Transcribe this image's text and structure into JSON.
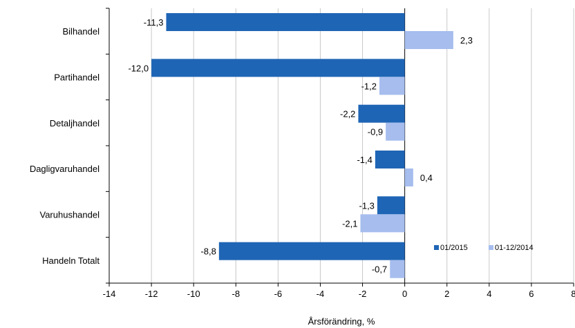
{
  "chart_data": {
    "type": "bar",
    "orientation": "horizontal",
    "categories": [
      "Bilhandel",
      "Partihandel",
      "Detaljhandel",
      "Dagligvaruhandel",
      "Varuhushandel",
      "Handeln Totalt"
    ],
    "series": [
      {
        "name": "01/2015",
        "color": "#1f65b5",
        "values": [
          -11.3,
          -12.0,
          -2.2,
          -1.4,
          -1.3,
          -8.8
        ],
        "labels": [
          "-11,3",
          "-12,0",
          "-2,2",
          "-1,4",
          "-1,3",
          "-8,8"
        ]
      },
      {
        "name": "01-12/2014",
        "color": "#a6bdee",
        "values": [
          2.3,
          -1.2,
          -0.9,
          0.4,
          -2.1,
          -0.7
        ],
        "labels": [
          "2,3",
          "-1,2",
          "-0,9",
          "0,4",
          "-2,1",
          "-0,7"
        ]
      }
    ],
    "xlabel": "Årsförändring, %",
    "xlim": [
      -14,
      8
    ],
    "xticks": [
      -14,
      -12,
      -10,
      -8,
      -6,
      -4,
      -2,
      0,
      2,
      4,
      6,
      8
    ],
    "xtick_labels": [
      "-14",
      "-12",
      "-10",
      "-8",
      "-6",
      "-4",
      "-2",
      "0",
      "2",
      "4",
      "6",
      "8"
    ],
    "grid": "vertical",
    "legend": "bottom-right"
  }
}
